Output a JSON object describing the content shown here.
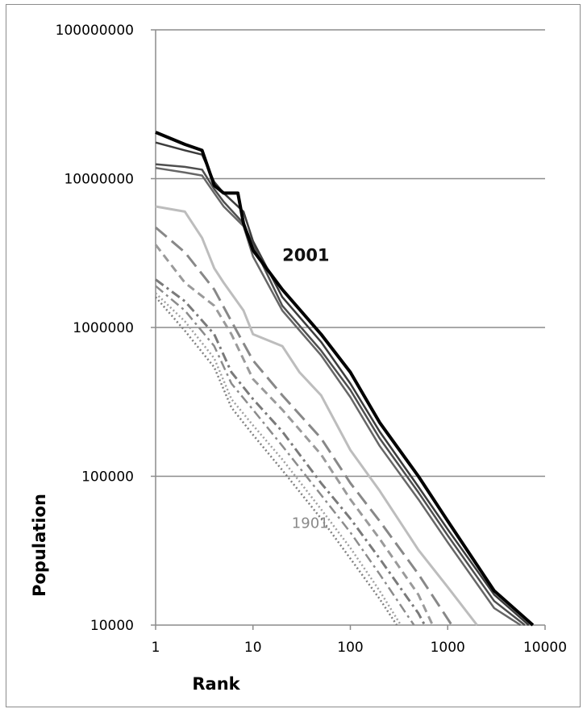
{
  "chart_data": {
    "type": "line",
    "x_scale": "log",
    "y_scale": "log",
    "xlabel": "Rank",
    "ylabel": "Population",
    "xlim": [
      1,
      10000
    ],
    "ylim": [
      10000,
      100000000
    ],
    "x_ticks": [
      "1",
      "10",
      "100",
      "1000",
      "10000"
    ],
    "y_ticks": [
      "100000000",
      "10000000",
      "1000000",
      "100000",
      "10000"
    ],
    "grid": "horizontal",
    "annotations": [
      {
        "text": "2001",
        "x": 20,
        "y": 2800000,
        "style": "bold"
      },
      {
        "text": "1901",
        "x": 25,
        "y": 45000,
        "style": "light"
      }
    ],
    "series": [
      {
        "color": "#000000",
        "dash": "solid",
        "width": 4,
        "points": [
          [
            1,
            20500000
          ],
          [
            2,
            17000000
          ],
          [
            3,
            15500000
          ],
          [
            4,
            9000000
          ],
          [
            5,
            8000000
          ],
          [
            7,
            8000000
          ],
          [
            8,
            5000000
          ],
          [
            10,
            3300000
          ],
          [
            20,
            1800000
          ],
          [
            50,
            900000
          ],
          [
            100,
            500000
          ],
          [
            200,
            230000
          ],
          [
            500,
            100000
          ],
          [
            1000,
            50000
          ],
          [
            3000,
            17000
          ],
          [
            7500,
            10000
          ]
        ]
      },
      {
        "color": "#3c3c3c",
        "dash": "solid",
        "width": 2.5,
        "points": [
          [
            1,
            17500000
          ],
          [
            2,
            15500000
          ],
          [
            3,
            14500000
          ],
          [
            4,
            9500000
          ],
          [
            5,
            8000000
          ],
          [
            8,
            6000000
          ],
          [
            10,
            3800000
          ],
          [
            20,
            1600000
          ],
          [
            50,
            800000
          ],
          [
            100,
            420000
          ],
          [
            200,
            200000
          ],
          [
            500,
            85000
          ],
          [
            1000,
            44000
          ],
          [
            3000,
            16000
          ],
          [
            6800,
            10000
          ]
        ]
      },
      {
        "color": "#4f4f4f",
        "dash": "solid",
        "width": 2.5,
        "points": [
          [
            1,
            12500000
          ],
          [
            2,
            12000000
          ],
          [
            3,
            11500000
          ],
          [
            4,
            8500000
          ],
          [
            5,
            7000000
          ],
          [
            8,
            5000000
          ],
          [
            10,
            3600000
          ],
          [
            20,
            1400000
          ],
          [
            50,
            700000
          ],
          [
            100,
            380000
          ],
          [
            200,
            180000
          ],
          [
            500,
            78000
          ],
          [
            1000,
            40000
          ],
          [
            3000,
            14500
          ],
          [
            6200,
            10000
          ]
        ]
      },
      {
        "color": "#666666",
        "dash": "solid",
        "width": 2.5,
        "points": [
          [
            1,
            11800000
          ],
          [
            2,
            11000000
          ],
          [
            3,
            10500000
          ],
          [
            4,
            8000000
          ],
          [
            5,
            6500000
          ],
          [
            8,
            4800000
          ],
          [
            10,
            3000000
          ],
          [
            20,
            1300000
          ],
          [
            50,
            650000
          ],
          [
            100,
            340000
          ],
          [
            200,
            160000
          ],
          [
            500,
            70000
          ],
          [
            1000,
            36000
          ],
          [
            3000,
            13000
          ],
          [
            5600,
            10000
          ]
        ]
      },
      {
        "color": "#bdbdbd",
        "dash": "solid",
        "width": 3,
        "points": [
          [
            1,
            6500000
          ],
          [
            2,
            6000000
          ],
          [
            3,
            4000000
          ],
          [
            4,
            2500000
          ],
          [
            5,
            2000000
          ],
          [
            8,
            1300000
          ],
          [
            10,
            900000
          ],
          [
            20,
            750000
          ],
          [
            30,
            500000
          ],
          [
            50,
            350000
          ],
          [
            100,
            150000
          ],
          [
            200,
            80000
          ],
          [
            500,
            32000
          ],
          [
            1000,
            18000
          ],
          [
            2000,
            10000
          ]
        ]
      },
      {
        "color": "#888888",
        "dash": "long-dash",
        "width": 3,
        "points": [
          [
            1,
            4700000
          ],
          [
            2,
            3200000
          ],
          [
            4,
            1800000
          ],
          [
            6,
            1100000
          ],
          [
            10,
            600000
          ],
          [
            20,
            350000
          ],
          [
            50,
            180000
          ],
          [
            100,
            90000
          ],
          [
            200,
            50000
          ],
          [
            500,
            22000
          ],
          [
            1000,
            11000
          ],
          [
            1100,
            10000
          ]
        ]
      },
      {
        "color": "#9a9a9a",
        "dash": "dash",
        "width": 3,
        "points": [
          [
            1,
            3600000
          ],
          [
            2,
            2000000
          ],
          [
            4,
            1400000
          ],
          [
            6,
            900000
          ],
          [
            10,
            450000
          ],
          [
            20,
            280000
          ],
          [
            50,
            140000
          ],
          [
            100,
            70000
          ],
          [
            200,
            38000
          ],
          [
            500,
            16000
          ],
          [
            700,
            10000
          ]
        ]
      },
      {
        "color": "#7a7a7a",
        "dash": "dash-dot",
        "width": 3,
        "points": [
          [
            1,
            2100000
          ],
          [
            2,
            1500000
          ],
          [
            4,
            900000
          ],
          [
            6,
            500000
          ],
          [
            10,
            330000
          ],
          [
            20,
            200000
          ],
          [
            50,
            90000
          ],
          [
            100,
            52000
          ],
          [
            200,
            28000
          ],
          [
            500,
            12000
          ],
          [
            580,
            10000
          ]
        ]
      },
      {
        "color": "#8c8c8c",
        "dash": "dash-dot",
        "width": 2.5,
        "points": [
          [
            1,
            1900000
          ],
          [
            2,
            1300000
          ],
          [
            4,
            750000
          ],
          [
            6,
            420000
          ],
          [
            10,
            280000
          ],
          [
            20,
            160000
          ],
          [
            50,
            75000
          ],
          [
            100,
            42000
          ],
          [
            200,
            22000
          ],
          [
            450,
            10000
          ]
        ]
      },
      {
        "color": "#a0a0a0",
        "dash": "dot",
        "width": 2.5,
        "points": [
          [
            1,
            1700000
          ],
          [
            2,
            1100000
          ],
          [
            4,
            620000
          ],
          [
            6,
            330000
          ],
          [
            10,
            220000
          ],
          [
            20,
            130000
          ],
          [
            50,
            60000
          ],
          [
            100,
            33000
          ],
          [
            200,
            17000
          ],
          [
            330,
            10000
          ]
        ]
      },
      {
        "color": "#808080",
        "dash": "dot",
        "width": 2.5,
        "points": [
          [
            1,
            1600000
          ],
          [
            2,
            950000
          ],
          [
            4,
            540000
          ],
          [
            6,
            290000
          ],
          [
            10,
            190000
          ],
          [
            20,
            110000
          ],
          [
            50,
            52000
          ],
          [
            100,
            28000
          ],
          [
            200,
            15000
          ],
          [
            300,
            10000
          ]
        ]
      }
    ]
  }
}
